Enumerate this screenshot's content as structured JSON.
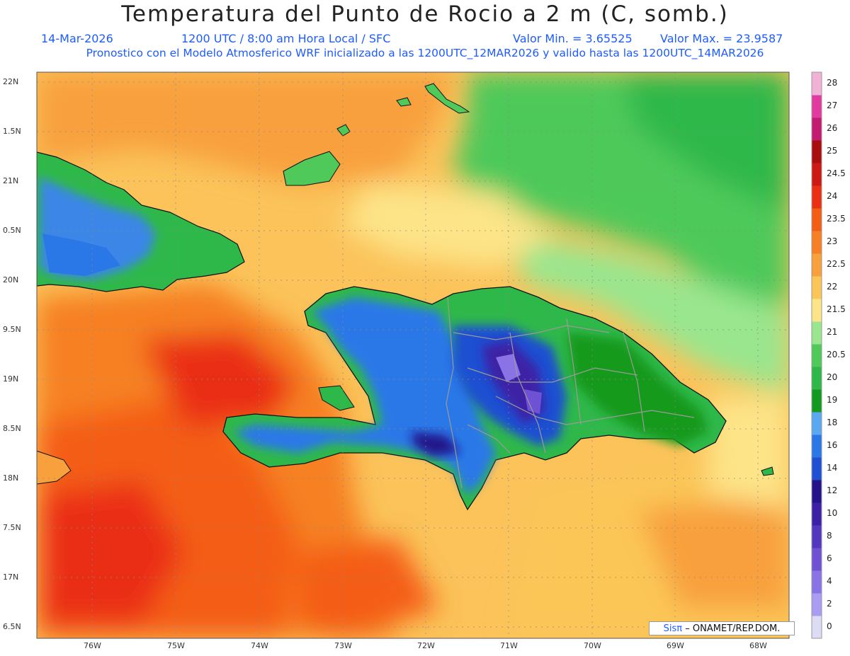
{
  "header": {
    "title": "Temperatura del Punto de Rocio a 2 m (C, somb.)",
    "date": "14-Mar-2026",
    "time": "1200 UTC / 8:00 am Hora Local / SFC",
    "min_label": "Valor Min. = 3.65525",
    "max_label": "Valor Max. = 23.9587",
    "model_line": "Pronostico con el Modelo Atmosferico WRF inicializado a las 1200UTC_12MAR2026 y valido hasta las  1200UTC_14MAR2026"
  },
  "map": {
    "lat_labels": [
      "22N",
      "1.5N",
      "21N",
      "0.5N",
      "20N",
      "9.5N",
      "19N",
      "8.5N",
      "18N",
      "7.5N",
      "17N",
      "6.5N"
    ],
    "lon_labels": [
      "76W",
      "75W",
      "74W",
      "73W",
      "72W",
      "71W",
      "70W",
      "69W",
      "68W"
    ],
    "credit_sis": "Sisπ",
    "credit_rest": "– ONAMET/REP.DOM."
  },
  "colorbar": {
    "levels": [
      "0",
      "2",
      "4",
      "6",
      "8",
      "10",
      "12",
      "14",
      "16",
      "18",
      "19",
      "20",
      "20.5",
      "21",
      "21.5",
      "22",
      "22.5",
      "23",
      "23.5",
      "24",
      "24.5",
      "25",
      "26",
      "27",
      "28"
    ],
    "colors": [
      "#dcdcf4",
      "#a99cf2",
      "#8a73e6",
      "#6f52d4",
      "#5437c0",
      "#3c21a6",
      "#24138a",
      "#1f4fd2",
      "#2a78e8",
      "#5aa8f2",
      "#129a1e",
      "#2fb84a",
      "#4ec95a",
      "#9ae68e",
      "#fde488",
      "#fbc657",
      "#f8a03c",
      "#f68023",
      "#f45d14",
      "#ea2f12",
      "#cf1714",
      "#aa0d0d",
      "#c41a70",
      "#e23aa0",
      "#f2b2d6"
    ]
  }
}
